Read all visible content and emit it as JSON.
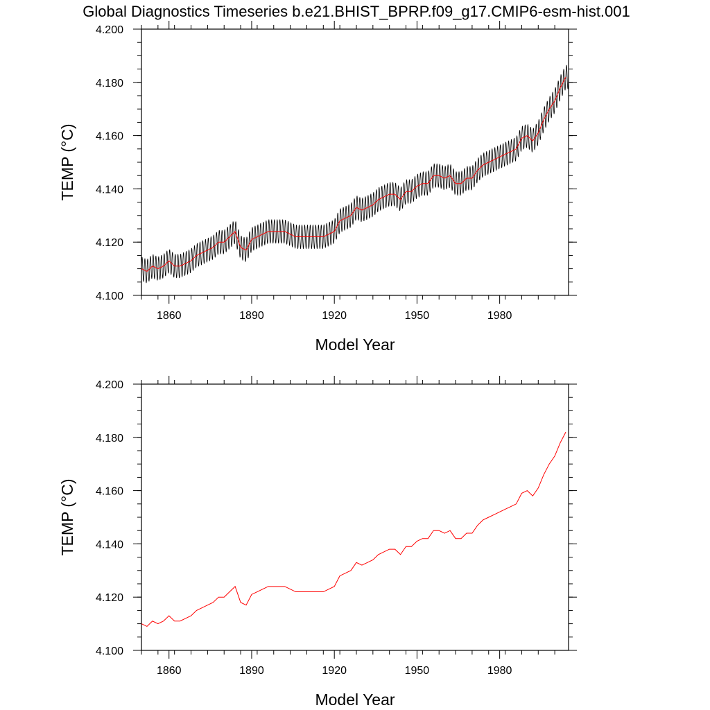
{
  "figure_title": "Global Diagnostics Timeseries b.e21.BHIST_BPRP.f09_g17.CMIP6-esm-hist.001",
  "colors": {
    "monthly": "#000000",
    "annual": "#ff0000",
    "axes": "#000000"
  },
  "chart_data": [
    {
      "type": "line",
      "title": "Global Diagnostics Timeseries b.e21.BHIST_BPRP.f09_g17.CMIP6-esm-hist.001",
      "xlabel": "Model Year",
      "ylabel": "TEMP (°C)",
      "xlim": [
        1850,
        2005
      ],
      "ylim": [
        4.1,
        4.2
      ],
      "x_ticks": [
        1860,
        1890,
        1920,
        1950,
        1980
      ],
      "x_tick_labels": [
        "1860",
        "1890",
        "1920",
        "1950",
        "1980"
      ],
      "y_ticks": [
        4.1,
        4.12,
        4.14,
        4.16,
        4.18,
        4.2
      ],
      "y_tick_labels": [
        "4.100",
        "4.120",
        "4.140",
        "4.160",
        "4.180",
        "4.200"
      ],
      "grid": false,
      "series": [
        {
          "name": "monthly",
          "color": "#000000",
          "seasonal_amplitude": 0.0045,
          "seasonal_period_years": 1,
          "note": "monthly values oscillate around the annual mean with the given seasonal amplitude"
        },
        {
          "name": "annual mean",
          "color": "#ff0000",
          "x": [
            1850,
            1852,
            1854,
            1856,
            1858,
            1860,
            1862,
            1864,
            1866,
            1868,
            1870,
            1872,
            1874,
            1876,
            1878,
            1880,
            1882,
            1884,
            1886,
            1888,
            1890,
            1892,
            1894,
            1896,
            1898,
            1900,
            1902,
            1904,
            1906,
            1908,
            1910,
            1912,
            1914,
            1916,
            1918,
            1920,
            1922,
            1924,
            1926,
            1928,
            1930,
            1932,
            1934,
            1936,
            1938,
            1940,
            1942,
            1944,
            1946,
            1948,
            1950,
            1952,
            1954,
            1956,
            1958,
            1960,
            1962,
            1964,
            1966,
            1968,
            1970,
            1972,
            1974,
            1976,
            1978,
            1980,
            1982,
            1984,
            1986,
            1988,
            1990,
            1992,
            1994,
            1996,
            1998,
            2000,
            2002,
            2004
          ],
          "values": [
            4.11,
            4.109,
            4.111,
            4.11,
            4.111,
            4.113,
            4.111,
            4.111,
            4.112,
            4.113,
            4.115,
            4.116,
            4.117,
            4.118,
            4.12,
            4.12,
            4.122,
            4.124,
            4.118,
            4.117,
            4.121,
            4.122,
            4.123,
            4.124,
            4.124,
            4.124,
            4.124,
            4.123,
            4.122,
            4.122,
            4.122,
            4.122,
            4.122,
            4.122,
            4.123,
            4.124,
            4.128,
            4.129,
            4.13,
            4.133,
            4.132,
            4.133,
            4.134,
            4.136,
            4.137,
            4.138,
            4.138,
            4.136,
            4.139,
            4.139,
            4.141,
            4.142,
            4.142,
            4.145,
            4.145,
            4.144,
            4.145,
            4.142,
            4.142,
            4.144,
            4.144,
            4.147,
            4.149,
            4.15,
            4.151,
            4.152,
            4.153,
            4.154,
            4.155,
            4.159,
            4.16,
            4.158,
            4.161,
            4.166,
            4.17,
            4.173,
            4.178,
            4.182
          ]
        }
      ]
    },
    {
      "type": "line",
      "title": "",
      "xlabel": "Model Year",
      "ylabel": "TEMP (°C)",
      "xlim": [
        1850,
        2005
      ],
      "ylim": [
        4.1,
        4.2
      ],
      "x_ticks": [
        1860,
        1890,
        1920,
        1950,
        1980
      ],
      "x_tick_labels": [
        "1860",
        "1890",
        "1920",
        "1950",
        "1980"
      ],
      "y_ticks": [
        4.1,
        4.12,
        4.14,
        4.16,
        4.18,
        4.2
      ],
      "y_tick_labels": [
        "4.100",
        "4.120",
        "4.140",
        "4.160",
        "4.180",
        "4.200"
      ],
      "grid": false,
      "series": [
        {
          "name": "annual mean",
          "color": "#ff0000",
          "x": [
            1850,
            1852,
            1854,
            1856,
            1858,
            1860,
            1862,
            1864,
            1866,
            1868,
            1870,
            1872,
            1874,
            1876,
            1878,
            1880,
            1882,
            1884,
            1886,
            1888,
            1890,
            1892,
            1894,
            1896,
            1898,
            1900,
            1902,
            1904,
            1906,
            1908,
            1910,
            1912,
            1914,
            1916,
            1918,
            1920,
            1922,
            1924,
            1926,
            1928,
            1930,
            1932,
            1934,
            1936,
            1938,
            1940,
            1942,
            1944,
            1946,
            1948,
            1950,
            1952,
            1954,
            1956,
            1958,
            1960,
            1962,
            1964,
            1966,
            1968,
            1970,
            1972,
            1974,
            1976,
            1978,
            1980,
            1982,
            1984,
            1986,
            1988,
            1990,
            1992,
            1994,
            1996,
            1998,
            2000,
            2002,
            2004
          ],
          "values": [
            4.11,
            4.109,
            4.111,
            4.11,
            4.111,
            4.113,
            4.111,
            4.111,
            4.112,
            4.113,
            4.115,
            4.116,
            4.117,
            4.118,
            4.12,
            4.12,
            4.122,
            4.124,
            4.118,
            4.117,
            4.121,
            4.122,
            4.123,
            4.124,
            4.124,
            4.124,
            4.124,
            4.123,
            4.122,
            4.122,
            4.122,
            4.122,
            4.122,
            4.122,
            4.123,
            4.124,
            4.128,
            4.129,
            4.13,
            4.133,
            4.132,
            4.133,
            4.134,
            4.136,
            4.137,
            4.138,
            4.138,
            4.136,
            4.139,
            4.139,
            4.141,
            4.142,
            4.142,
            4.145,
            4.145,
            4.144,
            4.145,
            4.142,
            4.142,
            4.144,
            4.144,
            4.147,
            4.149,
            4.15,
            4.151,
            4.152,
            4.153,
            4.154,
            4.155,
            4.159,
            4.16,
            4.158,
            4.161,
            4.166,
            4.17,
            4.173,
            4.178,
            4.182
          ]
        }
      ]
    }
  ]
}
